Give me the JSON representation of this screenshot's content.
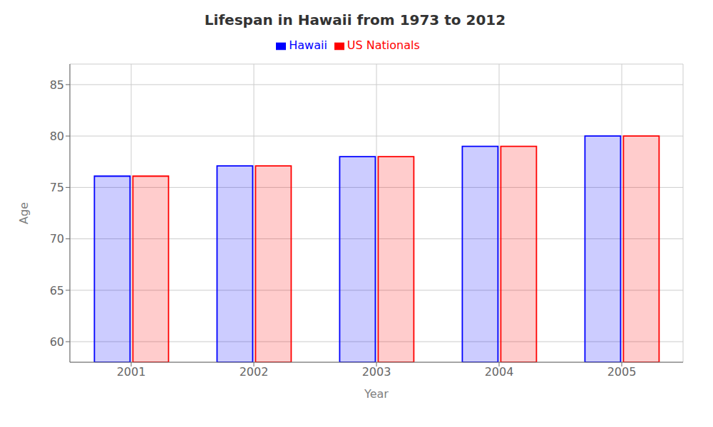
{
  "chart_data": {
    "type": "bar",
    "title": "Lifespan in Hawaii from 1973 to 2012",
    "x_label": "Year",
    "y_label": "Age",
    "categories": [
      "2001",
      "2002",
      "2003",
      "2004",
      "2005"
    ],
    "series": [
      {
        "name": "Hawaii",
        "color": "#0000ff",
        "values": [
          76.1,
          77.1,
          78.0,
          79.0,
          80.0
        ]
      },
      {
        "name": "US Nationals",
        "color": "#ff0000",
        "values": [
          76.1,
          77.1,
          78.0,
          79.0,
          80.0
        ]
      }
    ],
    "ylim": [
      58,
      87
    ],
    "yticks": [
      60,
      65,
      70,
      75,
      80,
      85
    ],
    "grid": true,
    "legend": "top"
  }
}
